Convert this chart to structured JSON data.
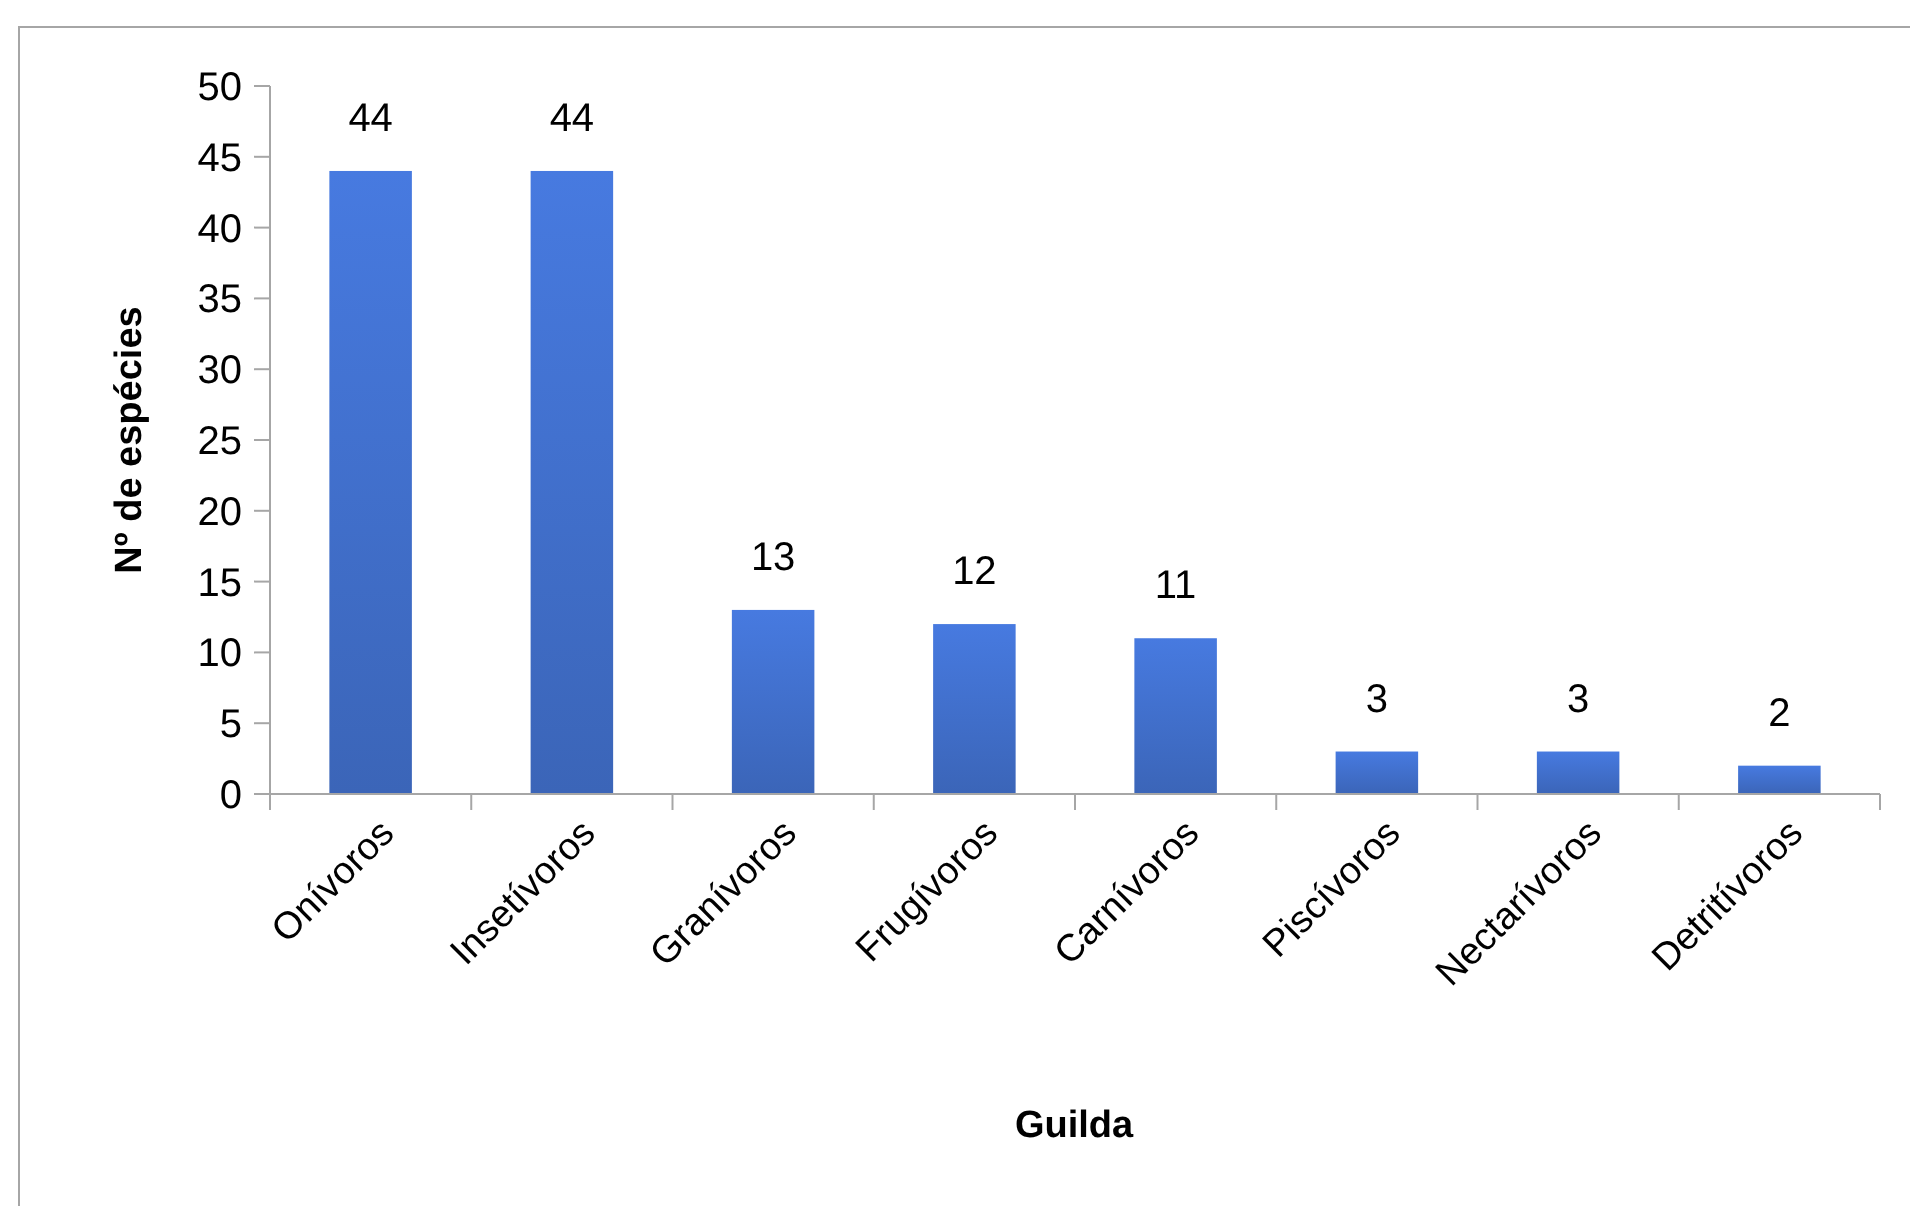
{
  "chart_data": {
    "type": "bar",
    "xlabel": "Guilda",
    "ylabel": "Nº de espécies",
    "categories": [
      "Onívoros",
      "Insetívoros",
      "Granívoros",
      "Frugívoros",
      "Carnívoros",
      "Piscívoros",
      "Nectarívoros",
      "Detritívoros"
    ],
    "values": [
      44,
      44,
      13,
      12,
      11,
      3,
      3,
      2
    ],
    "color": "#3f6cc6",
    "ylim": [
      0,
      50
    ],
    "yticks": [
      0,
      5,
      10,
      15,
      20,
      25,
      30,
      35,
      40,
      45,
      50
    ],
    "data_labels": true
  }
}
